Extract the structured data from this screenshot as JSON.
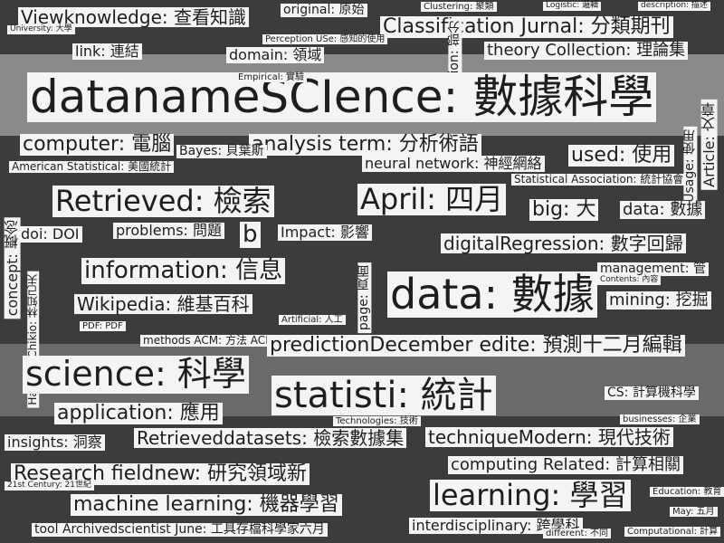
{
  "words": [
    {
      "text": "Viewknowledge: 查看知識"
    },
    {
      "text": "original: 原始"
    },
    {
      "text": "Clustering: 聚類"
    },
    {
      "text": "Logistic: 邏輯"
    },
    {
      "text": "description: 描述"
    },
    {
      "text": "Classification Jurnal: 分類期刊"
    },
    {
      "text": "University: 大學"
    },
    {
      "text": "link: 連結"
    },
    {
      "text": "Perception USe: 感知的使用"
    },
    {
      "text": "domain: 領域"
    },
    {
      "text": "theory Collection: 理論集"
    },
    {
      "text": "Section: 部分"
    },
    {
      "text": "datanameSCIence: 數據科學"
    },
    {
      "text": "Empirical: 實驗"
    },
    {
      "text": "computer: 電腦"
    },
    {
      "text": "analysis term: 分析術語"
    },
    {
      "text": "Bayes: 貝葉斯"
    },
    {
      "text": "American Statistical: 美國統計"
    },
    {
      "text": "neural network: 神經網絡"
    },
    {
      "text": "used: 使用"
    },
    {
      "text": "Statistical Association: 統計協會"
    },
    {
      "text": "Article: 文章"
    },
    {
      "text": "Usage: 使用"
    },
    {
      "text": "Retrieved: 檢索"
    },
    {
      "text": "April: 四月"
    },
    {
      "text": "big: 大"
    },
    {
      "text": "data: 數據"
    },
    {
      "text": "doi: DOI"
    },
    {
      "text": "problems: 問題"
    },
    {
      "text": "b"
    },
    {
      "text": "Impact: 影響"
    },
    {
      "text": "digitalRegression: 數字回歸"
    },
    {
      "text": "concept: 概念"
    },
    {
      "text": "information: 信息"
    },
    {
      "text": "management: 管"
    },
    {
      "text": "data: 數據"
    },
    {
      "text": "Wikipedia: 維基百科"
    },
    {
      "text": "mining: 挖掘"
    },
    {
      "text": "page: 頁面"
    },
    {
      "text": "Hayashi Chikio: 林知己夫"
    },
    {
      "text": "PDF: PDF"
    },
    {
      "text": "Artificial: 人工"
    },
    {
      "text": "methods ACM: 方法 ACM"
    },
    {
      "text": "predictionDecember edite: 預測十二月編輯"
    },
    {
      "text": "science: 科學"
    },
    {
      "text": "statisti: 統計"
    },
    {
      "text": "CS: 計算機科學"
    },
    {
      "text": "application: 應用"
    },
    {
      "text": "Technologies: 技術"
    },
    {
      "text": "insights: 洞察"
    },
    {
      "text": "Retrieveddatasets: 檢索數據集"
    },
    {
      "text": "techniqueModern: 現代技術"
    },
    {
      "text": "businesses: 企業"
    },
    {
      "text": "Research fieldnew: 研究領域新"
    },
    {
      "text": "computing Related: 計算相關"
    },
    {
      "text": "Education: 教育"
    },
    {
      "text": "machine learning: 機器學習"
    },
    {
      "text": "learning: 學習"
    },
    {
      "text": "tool Archivedscientist June: 工具存檔科學家六月"
    },
    {
      "text": "interdisciplinary: 跨學科"
    },
    {
      "text": "May: 五月"
    },
    {
      "text": "Computational: 計算"
    },
    {
      "text": "different: 不同"
    },
    {
      "text": "21st Century: 21世紀"
    },
    {
      "text": "Contents: 內容"
    }
  ]
}
